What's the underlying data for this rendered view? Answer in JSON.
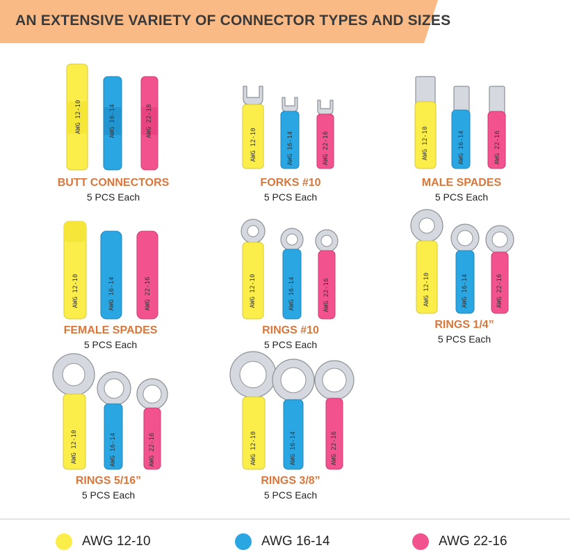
{
  "banner": {
    "title": "AN EXTENSIVE VARIETY OF CONNECTOR TYPES AND SIZES"
  },
  "colors": {
    "yellow": "#fbee4a",
    "blue": "#2aa6e2",
    "pink": "#f2528e",
    "banner": "#f9ba86",
    "title": "#d9763a"
  },
  "cells": [
    {
      "title": "BUTT CONNECTORS",
      "subtitle": "5 PCS Each",
      "icon": "butt-connector-icon",
      "prints": [
        "AWG 12-10",
        "AWG 16-14",
        "AWG 22-18"
      ]
    },
    {
      "title": "FORKS #10",
      "subtitle": "5 PCS Each",
      "icon": "fork-connector-icon",
      "prints": [
        "AWG 12-10",
        "AWG 16-14",
        "AWG 22-16"
      ]
    },
    {
      "title": "MALE SPADES",
      "subtitle": "5 PCS Each",
      "icon": "male-spade-icon",
      "prints": [
        "AWG 12-10",
        "AWG 16-14",
        "AWG 22-16"
      ]
    },
    {
      "title": "FEMALE SPADES",
      "subtitle": "5 PCS Each",
      "icon": "female-spade-icon",
      "prints": [
        "AWG 12-10",
        "AWG 16-14",
        "AWG 22-16"
      ]
    },
    {
      "title": "RINGS #10",
      "subtitle": "5 PCS Each",
      "icon": "ring-connector-icon",
      "prints": [
        "AWG 12-10",
        "AWG 16-14",
        "AWG 22-16"
      ]
    },
    {
      "title": "RINGS 1/4”",
      "subtitle": "5 PCS Each",
      "icon": "ring-connector-icon",
      "prints": [
        "AWG 12-10",
        "AWG 16-14",
        "AWG 22-16"
      ]
    },
    {
      "title": "RINGS 5/16”",
      "subtitle": "5 PCS Each",
      "icon": "ring-connector-icon",
      "prints": [
        "AWG 12-10",
        "AWG 16-14",
        "AWG 22-16"
      ]
    },
    {
      "title": "RINGS 3/8”",
      "subtitle": "5 PCS Each",
      "icon": "ring-connector-icon",
      "prints": [
        "AWG 12-10",
        "AWG 16-14",
        "AWG 22-16"
      ]
    }
  ],
  "legend": [
    {
      "label": "AWG 12-10",
      "color": "#fbee4a"
    },
    {
      "label": "AWG 16-14",
      "color": "#2aa6e2"
    },
    {
      "label": "AWG 22-16",
      "color": "#f2528e"
    }
  ]
}
